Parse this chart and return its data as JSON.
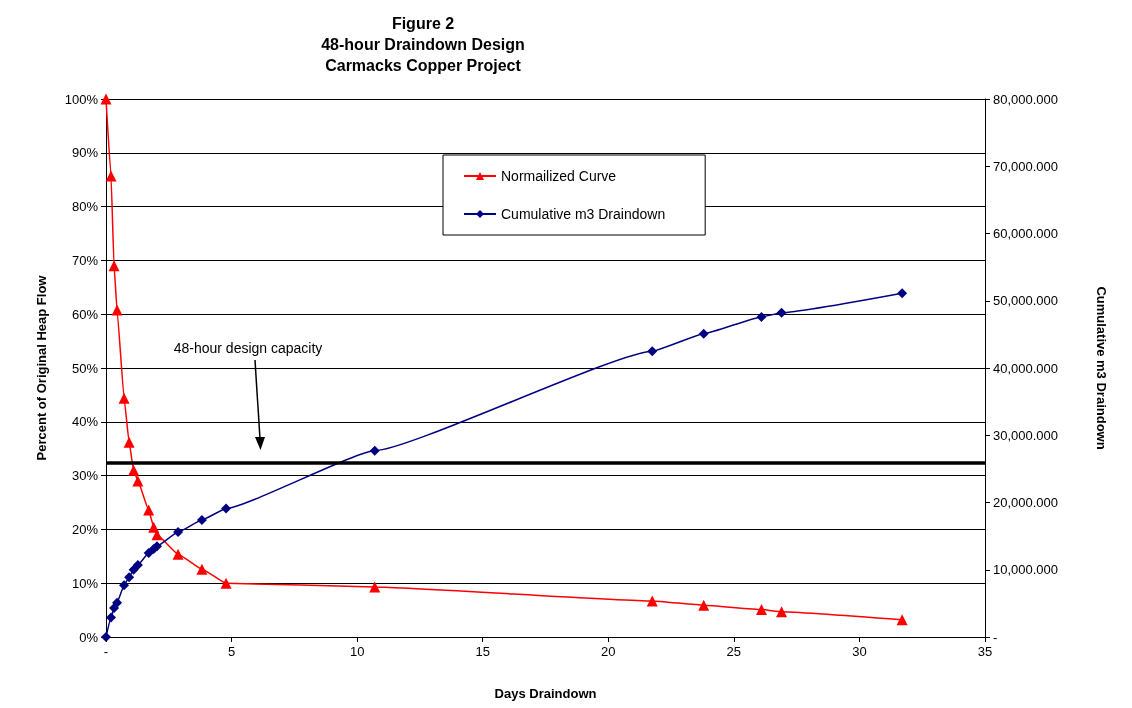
{
  "chart_data": {
    "type": "line",
    "title": "Figure 2\n48-hour Draindown Design\nCarmacks Copper Project",
    "xlabel": "Days Draindown",
    "ylabel": "Percent of Original Heap Flow",
    "y2label": "Cumulative m3 Draindown",
    "series": [
      {
        "name": "Normailized Curve",
        "color": "#ff0000",
        "marker": "triangle",
        "x": [
          0,
          0.2,
          0.32,
          0.44,
          0.72,
          0.92,
          1.1,
          1.27,
          1.7,
          1.9,
          2.03,
          2.87,
          3.82,
          4.78,
          10.7,
          21.75,
          23.8,
          26.1,
          26.9,
          31.7
        ],
        "values": [
          100,
          85.7,
          69,
          60.8,
          44.4,
          36.2,
          31,
          29,
          23.6,
          20.4,
          19,
          15.4,
          12.6,
          10,
          9.3,
          6.7,
          5.9,
          5.1,
          4.7,
          3.2
        ]
      },
      {
        "name": "Cumulative m3 Draindown",
        "color": "#000080",
        "marker": "diamond",
        "axis": "y2",
        "x": [
          0,
          0.2,
          0.32,
          0.44,
          0.72,
          0.92,
          1.1,
          1.27,
          1.7,
          1.9,
          2.03,
          2.87,
          3.82,
          4.78,
          10.7,
          21.75,
          23.8,
          26.1,
          26.9,
          31.7
        ],
        "values": [
          0,
          2900,
          4300,
          5100,
          7700,
          8900,
          10000,
          10700,
          12500,
          13100,
          13500,
          15600,
          17400,
          19100,
          27700,
          42500,
          45100,
          47600,
          48200,
          51100
        ]
      }
    ],
    "xlim": [
      0,
      35
    ],
    "xticks": [
      {
        "value": 0,
        "label": "-"
      },
      5,
      10,
      15,
      20,
      25,
      30,
      35
    ],
    "ylim": [
      0,
      100
    ],
    "yticks": [
      {
        "value": 0,
        "label": "0%"
      },
      {
        "value": 10,
        "label": "10%"
      },
      {
        "value": 20,
        "label": "20%"
      },
      {
        "value": 30,
        "label": "30%"
      },
      {
        "value": 40,
        "label": "40%"
      },
      {
        "value": 50,
        "label": "50%"
      },
      {
        "value": 60,
        "label": "60%"
      },
      {
        "value": 70,
        "label": "70%"
      },
      {
        "value": 80,
        "label": "80%"
      },
      {
        "value": 90,
        "label": "90%"
      },
      {
        "value": 100,
        "label": "100%"
      }
    ],
    "y2lim": [
      0,
      80000
    ],
    "y2ticks": [
      {
        "value": 0,
        "label": "-"
      },
      {
        "value": 10000,
        "label": "10,000.000"
      },
      {
        "value": 20000,
        "label": "20,000.000"
      },
      {
        "value": 30000,
        "label": "30,000.000"
      },
      {
        "value": 40000,
        "label": "40,000.000"
      },
      {
        "value": 50000,
        "label": "50,000.000"
      },
      {
        "value": 60000,
        "label": "60,000.000"
      },
      {
        "value": 70000,
        "label": "70,000.000"
      },
      {
        "value": 80000,
        "label": "80,000.000"
      }
    ],
    "ref_lines": [
      {
        "axis": "y",
        "value": 32.3,
        "color": "#000000",
        "line_style": "solid"
      }
    ],
    "annotations": [
      "48-hour design capacity"
    ],
    "grid": "y",
    "legend": "top",
    "line_style": "solid"
  }
}
